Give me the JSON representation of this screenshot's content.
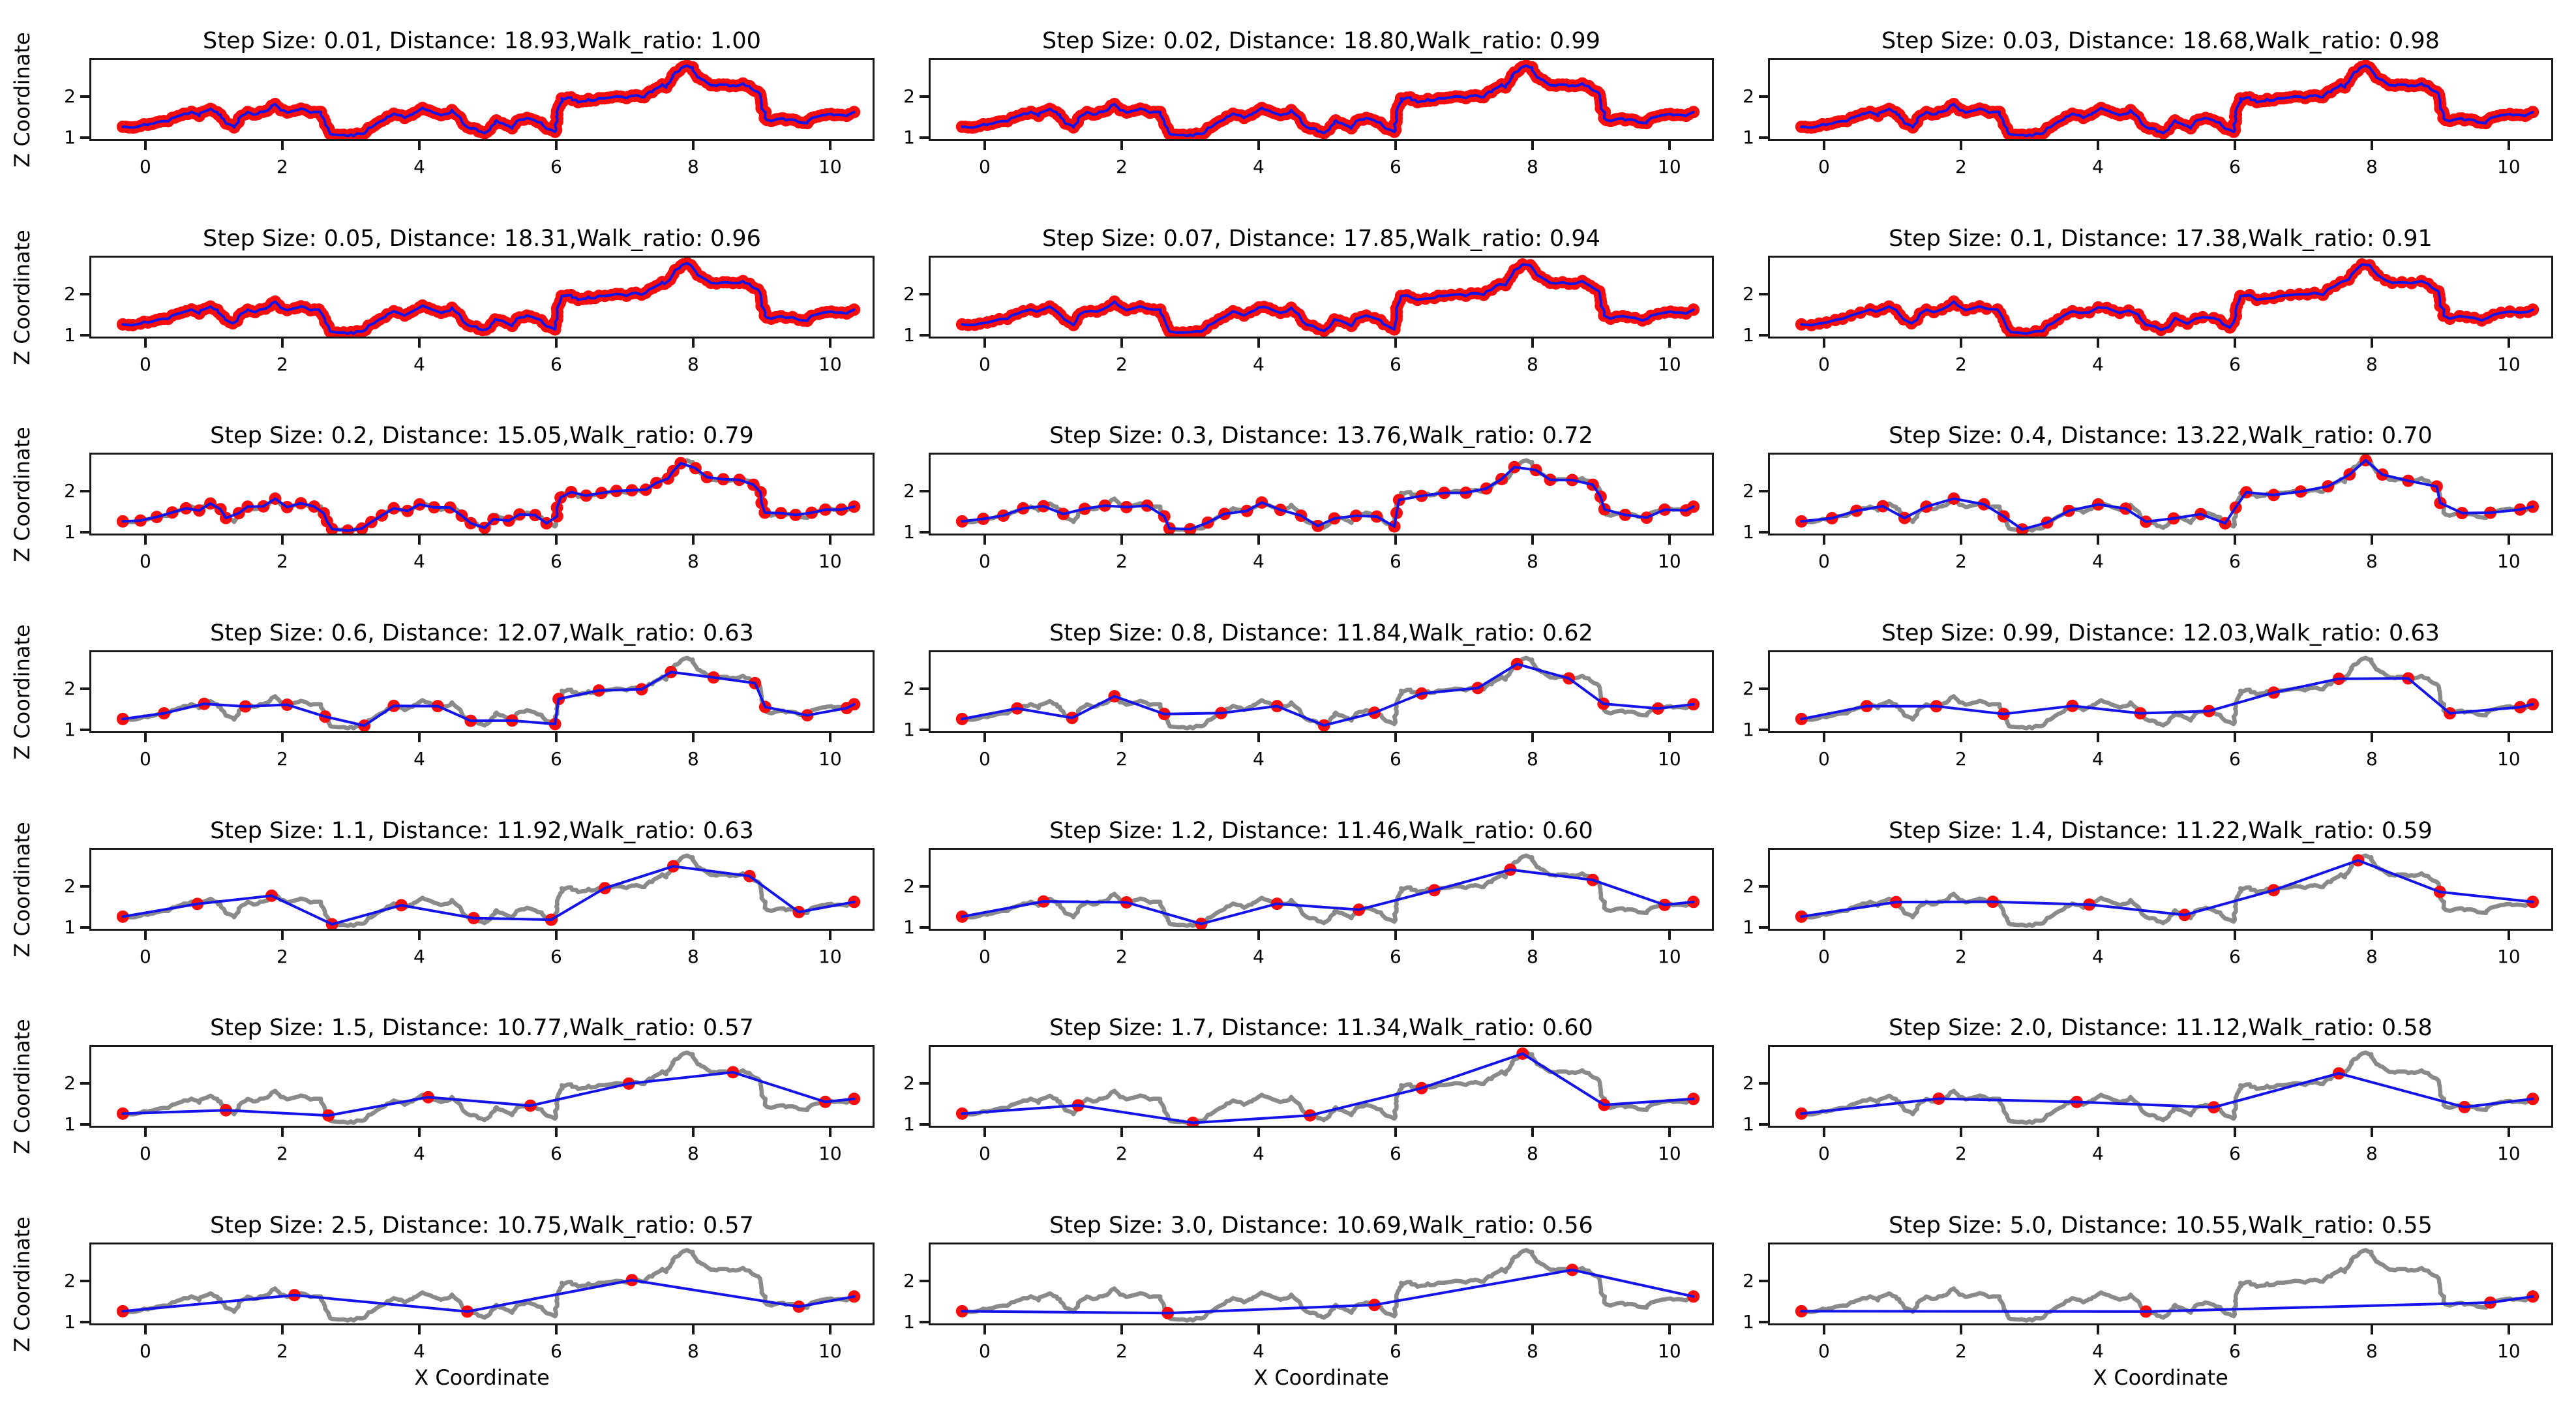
{
  "figure": {
    "background": "#ffffff"
  },
  "chart_data": {
    "type": "line",
    "title": "",
    "grid": {
      "rows": 7,
      "cols": 3
    },
    "xlabel": "X Coordinate",
    "ylabel": "Z Coordinate",
    "xticks": [
      "0",
      "2",
      "4",
      "6",
      "8",
      "10"
    ],
    "xtick_values": [
      0,
      2,
      4,
      6,
      8,
      10
    ],
    "yticks": [
      "1",
      "2"
    ],
    "ytick_values": [
      1,
      2
    ],
    "xlim": [
      -0.79,
      10.62
    ],
    "ylim": [
      0.96,
      2.9
    ],
    "grid_lines": false,
    "legend": false,
    "colors": {
      "walk_line": "#8a8a8a",
      "resampled_line": "#1414e8",
      "marker_fill": "#f60d0d",
      "spine": "#1a1a1a",
      "text": "#000000",
      "background": "#ffffff"
    },
    "subplots": [
      {
        "step_size": "0.01",
        "distance": "18.93",
        "walk_ratio": "1.00",
        "title": "Step Size: 0.01, Distance: 18.93,Walk_ratio: 1.00"
      },
      {
        "step_size": "0.02",
        "distance": "18.80",
        "walk_ratio": "0.99",
        "title": "Step Size: 0.02, Distance: 18.80,Walk_ratio: 0.99"
      },
      {
        "step_size": "0.03",
        "distance": "18.68",
        "walk_ratio": "0.98",
        "title": "Step Size: 0.03, Distance: 18.68,Walk_ratio: 0.98"
      },
      {
        "step_size": "0.05",
        "distance": "18.31",
        "walk_ratio": "0.96",
        "title": "Step Size: 0.05, Distance: 18.31,Walk_ratio: 0.96"
      },
      {
        "step_size": "0.07",
        "distance": "17.85",
        "walk_ratio": "0.94",
        "title": "Step Size: 0.07, Distance: 17.85,Walk_ratio: 0.94"
      },
      {
        "step_size": "0.1",
        "distance": "17.38",
        "walk_ratio": "0.91",
        "title": "Step Size: 0.1, Distance: 17.38,Walk_ratio: 0.91"
      },
      {
        "step_size": "0.2",
        "distance": "15.05",
        "walk_ratio": "0.79",
        "title": "Step Size: 0.2, Distance: 15.05,Walk_ratio: 0.79"
      },
      {
        "step_size": "0.3",
        "distance": "13.76",
        "walk_ratio": "0.72",
        "title": "Step Size: 0.3, Distance: 13.76,Walk_ratio: 0.72"
      },
      {
        "step_size": "0.4",
        "distance": "13.22",
        "walk_ratio": "0.70",
        "title": "Step Size: 0.4, Distance: 13.22,Walk_ratio: 0.70"
      },
      {
        "step_size": "0.6",
        "distance": "12.07",
        "walk_ratio": "0.63",
        "title": "Step Size: 0.6, Distance: 12.07,Walk_ratio: 0.63"
      },
      {
        "step_size": "0.8",
        "distance": "11.84",
        "walk_ratio": "0.62",
        "title": "Step Size: 0.8, Distance: 11.84,Walk_ratio: 0.62"
      },
      {
        "step_size": "0.99",
        "distance": "12.03",
        "walk_ratio": "0.63",
        "title": "Step Size: 0.99, Distance: 12.03,Walk_ratio: 0.63"
      },
      {
        "step_size": "1.1",
        "distance": "11.92",
        "walk_ratio": "0.63",
        "title": "Step Size: 1.1, Distance: 11.92,Walk_ratio: 0.63"
      },
      {
        "step_size": "1.2",
        "distance": "11.46",
        "walk_ratio": "0.60",
        "title": "Step Size: 1.2, Distance: 11.46,Walk_ratio: 0.60"
      },
      {
        "step_size": "1.4",
        "distance": "11.22",
        "walk_ratio": "0.59",
        "title": "Step Size: 1.4, Distance: 11.22,Walk_ratio: 0.59"
      },
      {
        "step_size": "1.5",
        "distance": "10.77",
        "walk_ratio": "0.57",
        "title": "Step Size: 1.5, Distance: 10.77,Walk_ratio: 0.57"
      },
      {
        "step_size": "1.7",
        "distance": "11.34",
        "walk_ratio": "0.60",
        "title": "Step Size: 1.7, Distance: 11.34,Walk_ratio: 0.60"
      },
      {
        "step_size": "2.0",
        "distance": "11.12",
        "walk_ratio": "0.58",
        "title": "Step Size: 2.0, Distance: 11.12,Walk_ratio: 0.58"
      },
      {
        "step_size": "2.5",
        "distance": "10.75",
        "walk_ratio": "0.57",
        "title": "Step Size: 2.5, Distance: 10.75,Walk_ratio: 0.57"
      },
      {
        "step_size": "3.0",
        "distance": "10.69",
        "walk_ratio": "0.56",
        "title": "Step Size: 3.0, Distance: 10.69,Walk_ratio: 0.56"
      },
      {
        "step_size": "5.0",
        "distance": "10.55",
        "walk_ratio": "0.55",
        "title": "Step Size: 5.0, Distance: 10.55,Walk_ratio: 0.55"
      }
    ],
    "walk_anchors": [
      [
        -0.32,
        1.27
      ],
      [
        -0.18,
        1.29
      ],
      [
        -0.02,
        1.31
      ],
      [
        0.12,
        1.34
      ],
      [
        0.28,
        1.4
      ],
      [
        0.42,
        1.5
      ],
      [
        0.55,
        1.58
      ],
      [
        0.68,
        1.63
      ],
      [
        0.8,
        1.55
      ],
      [
        0.93,
        1.69
      ],
      [
        1.05,
        1.63
      ],
      [
        1.18,
        1.38
      ],
      [
        1.28,
        1.28
      ],
      [
        1.4,
        1.5
      ],
      [
        1.52,
        1.62
      ],
      [
        1.64,
        1.5
      ],
      [
        1.77,
        1.7
      ],
      [
        1.87,
        1.84
      ],
      [
        1.98,
        1.72
      ],
      [
        2.12,
        1.63
      ],
      [
        2.28,
        1.68
      ],
      [
        2.44,
        1.64
      ],
      [
        2.58,
        1.68
      ],
      [
        2.66,
        1.32
      ],
      [
        2.74,
        1.1
      ],
      [
        2.9,
        1.05
      ],
      [
        3.06,
        1.06
      ],
      [
        3.22,
        1.12
      ],
      [
        3.36,
        1.34
      ],
      [
        3.5,
        1.5
      ],
      [
        3.62,
        1.6
      ],
      [
        3.76,
        1.5
      ],
      [
        3.92,
        1.62
      ],
      [
        4.06,
        1.72
      ],
      [
        4.2,
        1.6
      ],
      [
        4.34,
        1.5
      ],
      [
        4.48,
        1.62
      ],
      [
        4.6,
        1.5
      ],
      [
        4.72,
        1.32
      ],
      [
        4.84,
        1.18
      ],
      [
        4.94,
        1.1
      ],
      [
        5.04,
        1.28
      ],
      [
        5.12,
        1.45
      ],
      [
        5.22,
        1.34
      ],
      [
        5.34,
        1.24
      ],
      [
        5.46,
        1.42
      ],
      [
        5.58,
        1.48
      ],
      [
        5.68,
        1.44
      ],
      [
        5.78,
        1.4
      ],
      [
        5.88,
        1.24
      ],
      [
        5.97,
        1.17
      ],
      [
        6.04,
        1.58
      ],
      [
        6.1,
        1.96
      ],
      [
        6.22,
        2.0
      ],
      [
        6.32,
        1.88
      ],
      [
        6.46,
        1.96
      ],
      [
        6.56,
        1.9
      ],
      [
        6.7,
        1.96
      ],
      [
        6.85,
        2.01
      ],
      [
        7.0,
        1.98
      ],
      [
        7.16,
        2.06
      ],
      [
        7.3,
        2.0
      ],
      [
        7.44,
        2.18
      ],
      [
        7.54,
        2.3
      ],
      [
        7.62,
        2.26
      ],
      [
        7.7,
        2.54
      ],
      [
        7.79,
        2.72
      ],
      [
        7.88,
        2.78
      ],
      [
        7.98,
        2.71
      ],
      [
        8.08,
        2.5
      ],
      [
        8.18,
        2.38
      ],
      [
        8.3,
        2.28
      ],
      [
        8.44,
        2.33
      ],
      [
        8.58,
        2.28
      ],
      [
        8.72,
        2.33
      ],
      [
        8.86,
        2.22
      ],
      [
        8.97,
        2.1
      ],
      [
        9.04,
        1.72
      ],
      [
        9.09,
        1.44
      ],
      [
        9.22,
        1.42
      ],
      [
        9.36,
        1.4
      ],
      [
        9.5,
        1.43
      ],
      [
        9.64,
        1.38
      ],
      [
        9.76,
        1.52
      ],
      [
        9.9,
        1.58
      ],
      [
        10.04,
        1.57
      ],
      [
        10.18,
        1.58
      ],
      [
        10.35,
        1.62
      ]
    ],
    "walk_noise": {
      "seed": 99,
      "subdivision_length": 0.05,
      "z_amp": 0.06,
      "z_decay": 0.8,
      "x_amp": 0.04,
      "x_decay": 0.75,
      "micro_amp": 0.02,
      "z_clamp": [
        1.01,
        2.84
      ]
    },
    "resampling_rule": "keep point when euclidean distance from last kept point >= step_size; always keep first and last"
  }
}
